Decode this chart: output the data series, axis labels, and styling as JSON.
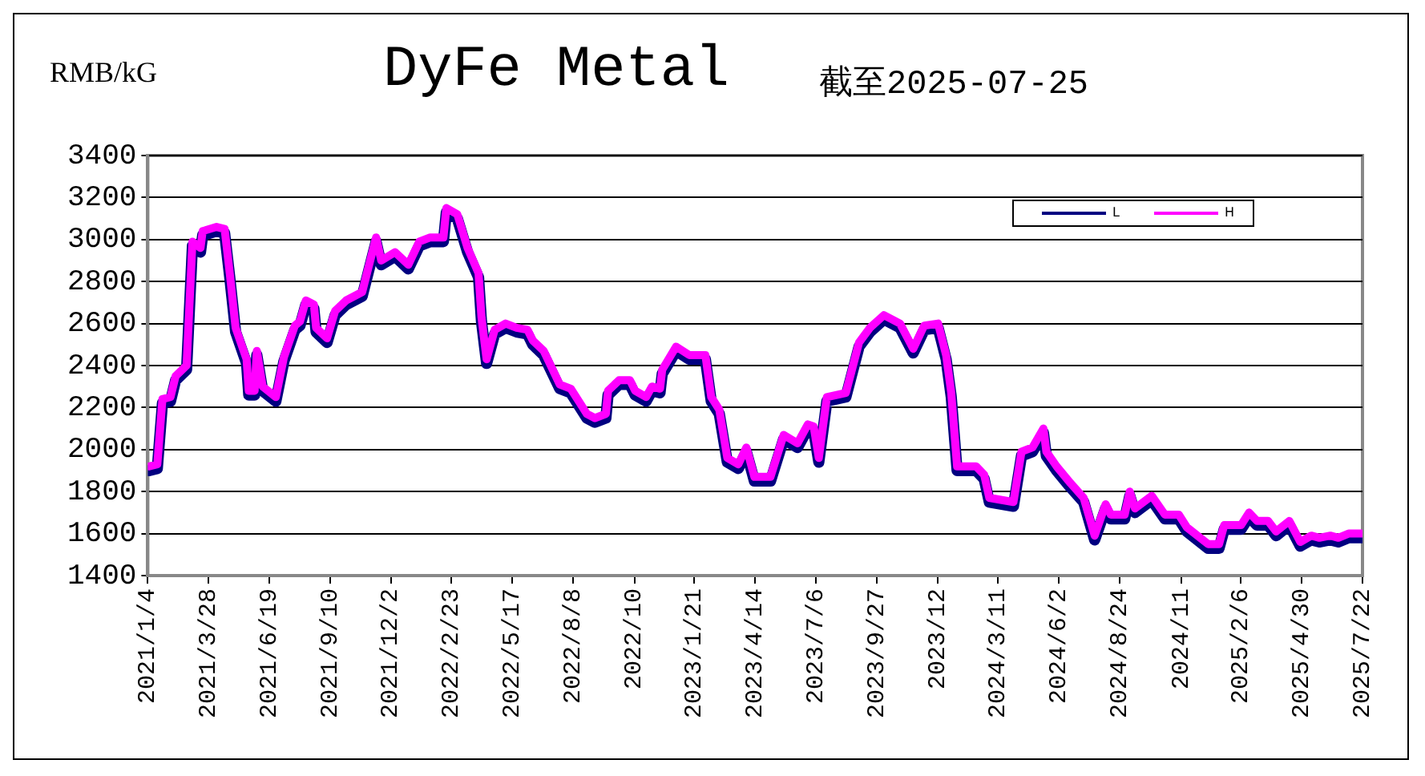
{
  "chart_data": {
    "type": "line",
    "title": "DyFe Metal",
    "subtitle": "截至2025-07-25",
    "ylabel": "RMB/kG",
    "x": [
      "2021-01-06",
      "2021-01-17",
      "2021-01-24",
      "2021-02-04",
      "2021-02-11",
      "2021-02-26",
      "2021-03-06",
      "2021-03-17",
      "2021-03-20",
      "2021-04-08",
      "2021-04-19",
      "2021-04-26",
      "2021-05-04",
      "2021-05-19",
      "2021-05-22",
      "2021-05-30",
      "2021-06-02",
      "2021-06-10",
      "2021-06-28",
      "2021-07-09",
      "2021-07-24",
      "2021-07-31",
      "2021-08-08",
      "2021-08-19",
      "2021-08-22",
      "2021-09-06",
      "2021-09-17",
      "2021-10-02",
      "2021-10-24",
      "2021-11-01",
      "2021-11-12",
      "2021-11-19",
      "2021-12-08",
      "2021-12-26",
      "2022-01-10",
      "2022-01-25",
      "2022-02-12",
      "2022-02-16",
      "2022-03-03",
      "2022-03-17",
      "2022-04-01",
      "2022-04-05",
      "2022-04-12",
      "2022-04-23",
      "2022-05-08",
      "2022-05-23",
      "2022-06-07",
      "2022-06-14",
      "2022-06-29",
      "2022-07-21",
      "2022-08-05",
      "2022-08-27",
      "2022-09-07",
      "2022-09-22",
      "2022-09-25",
      "2022-10-10",
      "2022-10-25",
      "2022-11-01",
      "2022-11-16",
      "2022-11-24",
      "2022-12-05",
      "2022-12-08",
      "2022-12-27",
      "2023-01-14",
      "2023-02-05",
      "2023-02-13",
      "2023-02-24",
      "2023-03-07",
      "2023-03-22",
      "2023-04-02",
      "2023-04-13",
      "2023-05-05",
      "2023-05-23",
      "2023-06-11",
      "2023-06-25",
      "2023-07-03",
      "2023-07-10",
      "2023-07-21",
      "2023-08-16",
      "2023-09-03",
      "2023-09-18",
      "2023-10-07",
      "2023-10-29",
      "2023-11-16",
      "2023-12-01",
      "2023-12-20",
      "2023-12-31",
      "2024-01-07",
      "2024-01-15",
      "2024-02-10",
      "2024-02-21",
      "2024-02-28",
      "2024-04-01",
      "2024-04-12",
      "2024-04-27",
      "2024-05-12",
      "2024-05-16",
      "2024-05-30",
      "2024-06-18",
      "2024-07-06",
      "2024-07-21",
      "2024-08-05",
      "2024-08-12",
      "2024-08-31",
      "2024-09-07",
      "2024-09-14",
      "2024-10-07",
      "2024-10-25",
      "2024-11-13",
      "2024-11-24",
      "2024-12-23",
      "2025-01-07",
      "2025-01-14",
      "2025-02-06",
      "2025-02-17",
      "2025-02-28",
      "2025-03-15",
      "2025-03-26",
      "2025-04-13",
      "2025-04-28",
      "2025-05-13",
      "2025-05-24",
      "2025-06-08",
      "2025-06-19",
      "2025-07-03",
      "2025-07-22"
    ],
    "series": [
      {
        "name": "L",
        "color": "#000080",
        "values": [
          1900,
          1910,
          2220,
          2230,
          2330,
          2380,
          2970,
          2940,
          3020,
          3040,
          3030,
          2820,
          2560,
          2410,
          2260,
          2260,
          2450,
          2280,
          2230,
          2420,
          2570,
          2590,
          2690,
          2670,
          2560,
          2510,
          2640,
          2690,
          2730,
          2840,
          2990,
          2880,
          2920,
          2860,
          2970,
          2990,
          2990,
          3130,
          3100,
          2940,
          2820,
          2610,
          2410,
          2550,
          2580,
          2560,
          2550,
          2500,
          2450,
          2290,
          2270,
          2150,
          2130,
          2150,
          2260,
          2310,
          2310,
          2260,
          2230,
          2280,
          2270,
          2360,
          2470,
          2430,
          2430,
          2230,
          2170,
          1940,
          1910,
          1990,
          1850,
          1850,
          2050,
          2010,
          2100,
          2090,
          1940,
          2230,
          2250,
          2490,
          2560,
          2620,
          2580,
          2460,
          2570,
          2580,
          2430,
          2250,
          1900,
          1900,
          1860,
          1750,
          1730,
          1970,
          1990,
          2080,
          1970,
          1900,
          1820,
          1750,
          1570,
          1720,
          1670,
          1670,
          1780,
          1700,
          1760,
          1670,
          1670,
          1610,
          1530,
          1530,
          1620,
          1620,
          1680,
          1640,
          1640,
          1590,
          1640,
          1540,
          1570,
          1560,
          1570,
          1560,
          1580,
          1580
        ]
      },
      {
        "name": "H",
        "color": "#ff00ff",
        "values": [
          1920,
          1930,
          2240,
          2250,
          2350,
          2400,
          2990,
          2960,
          3040,
          3060,
          3050,
          2840,
          2580,
          2430,
          2280,
          2280,
          2470,
          2300,
          2250,
          2440,
          2590,
          2610,
          2710,
          2690,
          2580,
          2530,
          2660,
          2710,
          2750,
          2860,
          3010,
          2900,
          2940,
          2880,
          2990,
          3010,
          3010,
          3150,
          3120,
          2960,
          2840,
          2630,
          2430,
          2570,
          2600,
          2580,
          2570,
          2520,
          2470,
          2310,
          2290,
          2170,
          2150,
          2170,
          2280,
          2330,
          2330,
          2280,
          2250,
          2300,
          2290,
          2380,
          2490,
          2450,
          2450,
          2250,
          2190,
          1960,
          1930,
          2010,
          1870,
          1870,
          2070,
          2030,
          2120,
          2110,
          1960,
          2250,
          2270,
          2510,
          2580,
          2640,
          2600,
          2480,
          2590,
          2600,
          2450,
          2270,
          1920,
          1920,
          1880,
          1770,
          1750,
          1990,
          2010,
          2100,
          1990,
          1920,
          1840,
          1770,
          1590,
          1740,
          1690,
          1690,
          1800,
          1720,
          1780,
          1690,
          1690,
          1630,
          1550,
          1550,
          1640,
          1640,
          1700,
          1660,
          1660,
          1610,
          1660,
          1560,
          1590,
          1580,
          1590,
          1580,
          1600,
          1600
        ]
      }
    ],
    "xlim": [
      "2021-01-04",
      "2025-07-22"
    ],
    "xticks": [
      {
        "value": "2021-01-04",
        "label": "2021/1/4"
      },
      {
        "value": "2021-03-28",
        "label": "2021/3/28"
      },
      {
        "value": "2021-06-19",
        "label": "2021/6/19"
      },
      {
        "value": "2021-09-10",
        "label": "2021/9/10"
      },
      {
        "value": "2021-12-02",
        "label": "2021/12/2"
      },
      {
        "value": "2022-02-23",
        "label": "2022/2/23"
      },
      {
        "value": "2022-05-17",
        "label": "2022/5/17"
      },
      {
        "value": "2022-08-08",
        "label": "2022/8/8"
      },
      {
        "value": "2022-10-31",
        "label": "2022/10"
      },
      {
        "value": "2023-01-21",
        "label": "2023/1/21"
      },
      {
        "value": "2023-04-14",
        "label": "2023/4/14"
      },
      {
        "value": "2023-07-06",
        "label": "2023/7/6"
      },
      {
        "value": "2023-09-27",
        "label": "2023/9/27"
      },
      {
        "value": "2023-12-20",
        "label": "2023/12"
      },
      {
        "value": "2024-03-11",
        "label": "2024/3/11"
      },
      {
        "value": "2024-06-02",
        "label": "2024/6/2"
      },
      {
        "value": "2024-08-24",
        "label": "2024/8/24"
      },
      {
        "value": "2024-11-16",
        "label": "2024/11"
      },
      {
        "value": "2025-02-06",
        "label": "2025/2/6"
      },
      {
        "value": "2025-04-30",
        "label": "2025/4/30"
      },
      {
        "value": "2025-07-22",
        "label": "2025/7/22"
      }
    ],
    "ylim": [
      1400,
      3400
    ],
    "yticks": [
      1400,
      1600,
      1800,
      2000,
      2200,
      2400,
      2600,
      2800,
      3000,
      3200,
      3400
    ],
    "grid": "y",
    "legend": "top right",
    "marker": "none",
    "line_style": "solid"
  }
}
